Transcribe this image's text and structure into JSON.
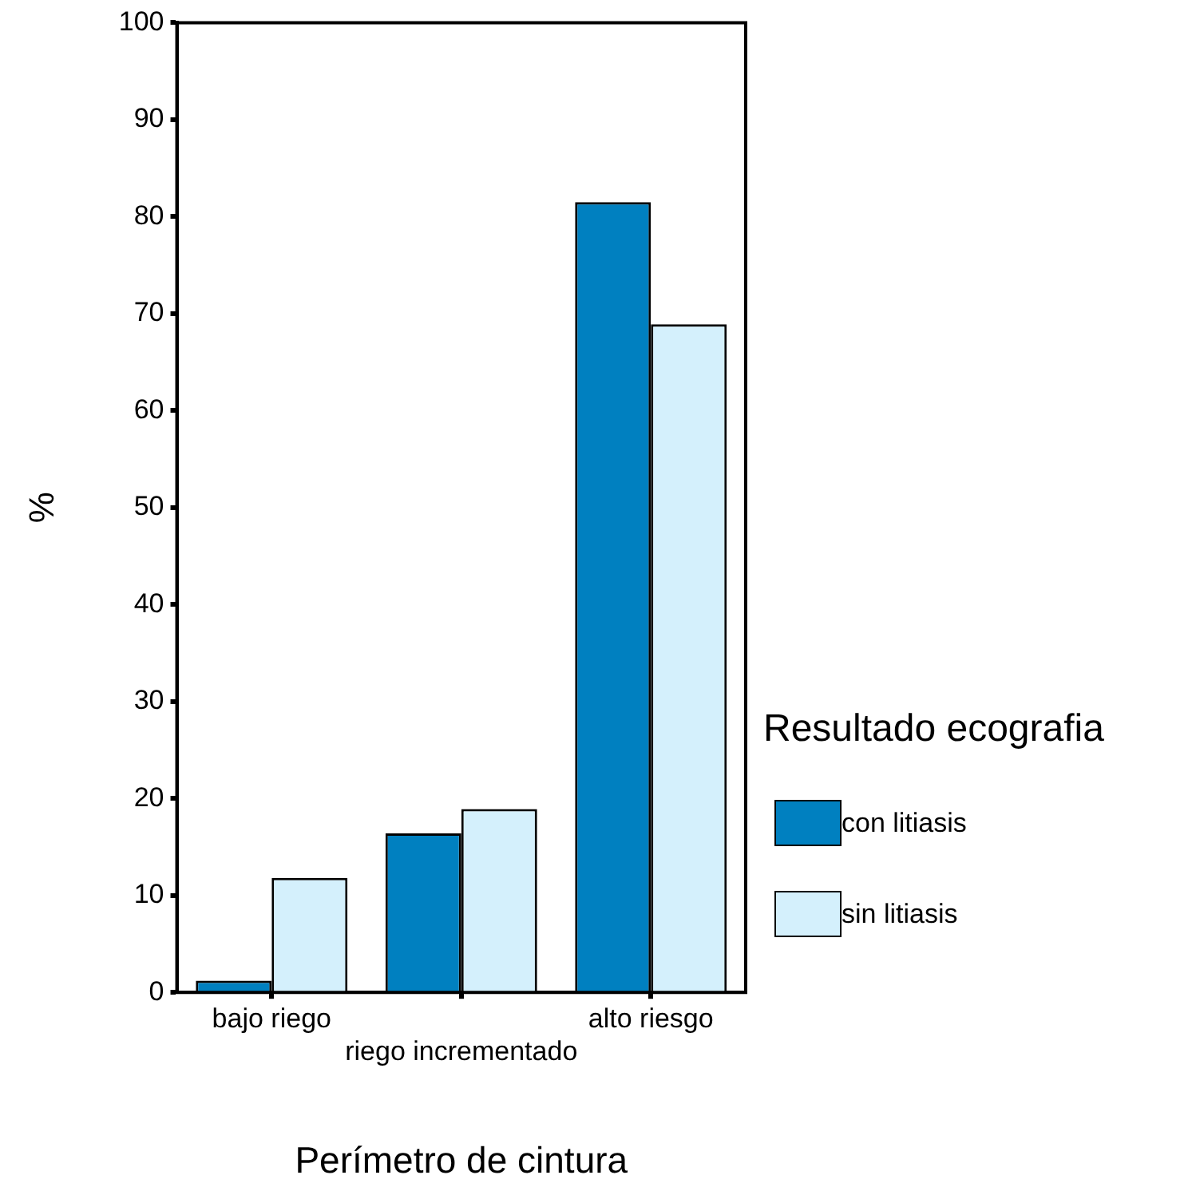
{
  "chart_data": {
    "type": "bar",
    "xlabel": "Perímetro de cintura",
    "ylabel": "%",
    "legend_title": "Resultado ecografia",
    "categories": [
      "bajo riego",
      "riego incrementado",
      "alto riesgo"
    ],
    "series": [
      {
        "name": "con litiasis",
        "color": "#0080c0",
        "values": [
          1.2,
          16.4,
          81.5
        ]
      },
      {
        "name": "sin litiasis",
        "color": "#d4f0fc",
        "values": [
          11.8,
          18.9,
          68.9
        ]
      }
    ],
    "ylim": [
      0,
      100
    ],
    "yticks": [
      0,
      10,
      20,
      30,
      40,
      50,
      60,
      70,
      80,
      90,
      100
    ],
    "grid": false,
    "legend": "right"
  }
}
